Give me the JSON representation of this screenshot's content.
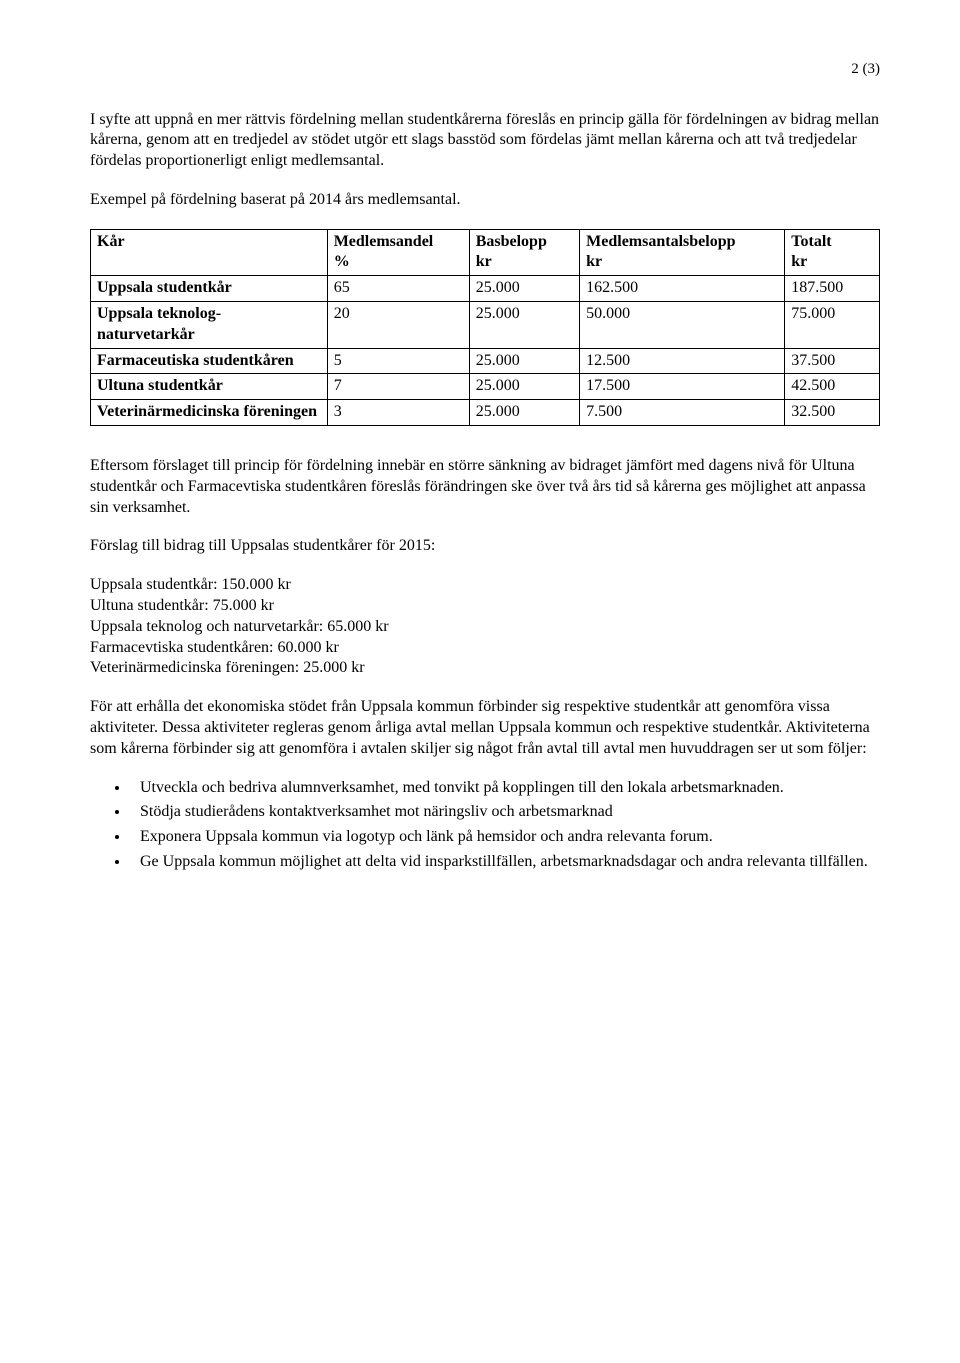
{
  "page_number": "2 (3)",
  "para1": "I syfte att uppnå en mer rättvis fördelning mellan studentkårerna föreslås en princip gälla för fördelningen av bidrag mellan kårerna, genom att en tredjedel av stödet utgör ett slags basstöd som fördelas jämt mellan kårerna och att två tredjedelar fördelas proportionerligt enligt medlemsantal.",
  "para2": "Exempel på fördelning baserat på 2014 års medlemsantal.",
  "table": {
    "headers": {
      "kar": "Kår",
      "medlemsandel_l1": "Medlemsandel",
      "medlemsandel_l2": "%",
      "bas_l1": "Basbelopp",
      "bas_l2": "kr",
      "mb_l1": "Medlemsantalsbelopp",
      "mb_l2": "kr",
      "tot_l1": "Totalt",
      "tot_l2": "kr"
    },
    "rows": [
      {
        "kar": "Uppsala studentkår",
        "ma": "65",
        "bas": "25.000",
        "mb": "162.500",
        "tot": "187.500",
        "bold_kar": true
      },
      {
        "kar": "Uppsala teknolog- naturvetarkår",
        "ma": "20",
        "bas": "25.000",
        "mb": "50.000",
        "tot": "75.000",
        "bold_kar": true
      },
      {
        "kar": "Farmaceutiska studentkåren",
        "ma": "5",
        "bas": "25.000",
        "mb": "12.500",
        "tot": "37.500",
        "bold_kar": true
      },
      {
        "kar": "Ultuna studentkår",
        "ma": "7",
        "bas": "25.000",
        "mb": "17.500",
        "tot": "42.500",
        "bold_kar": true
      },
      {
        "kar": "Veterinärmedicinska föreningen",
        "ma": "3",
        "bas": "25.000",
        "mb": "7.500",
        "tot": "32.500",
        "bold_kar": true
      }
    ]
  },
  "para3": "Eftersom förslaget till princip för fördelning innebär en större sänkning av bidraget jämfört med dagens nivå för Ultuna studentkår och Farmacevtiska studentkåren föreslås förändringen ske över två års tid så kårerna ges möjlighet att anpassa sin verksamhet.",
  "para4": "Förslag till bidrag till Uppsalas studentkårer för 2015:",
  "bidrag": [
    "Uppsala studentkår: 150.000 kr",
    "Ultuna studentkår: 75.000 kr",
    "Uppsala teknolog och naturvetarkår: 65.000 kr",
    "Farmacevtiska studentkåren: 60.000 kr",
    "Veterinärmedicinska föreningen: 25.000 kr"
  ],
  "para5": "För att erhålla det ekonomiska stödet från Uppsala kommun förbinder sig respektive studentkår att genomföra vissa aktiviteter. Dessa aktiviteter regleras genom årliga avtal mellan Uppsala kommun och respektive studentkår. Aktiviteterna som kårerna förbinder sig att genomföra i avtalen skiljer sig något från avtal till avtal men huvuddragen ser ut som följer:",
  "bullets": [
    "Utveckla och bedriva alumnverksamhet, med tonvikt på kopplingen till den lokala arbetsmarknaden.",
    "Stödja studierådens kontaktverksamhet mot näringsliv och arbetsmarknad",
    "Exponera Uppsala kommun via logotyp och länk på hemsidor och andra relevanta forum.",
    "Ge Uppsala kommun möjlighet att delta vid insparkstillfällen, arbetsmarknadsdagar och andra relevanta tillfällen."
  ]
}
